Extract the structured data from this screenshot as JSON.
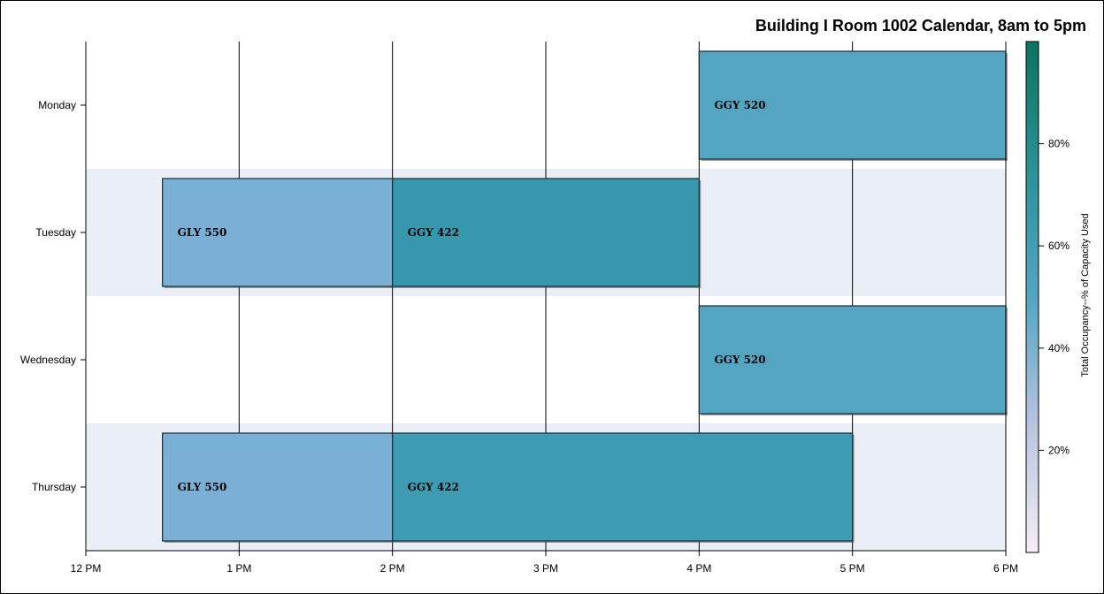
{
  "chart_data": {
    "type": "bar",
    "orientation": "horizontal",
    "title": "Building I Room 1002 Calendar, 8am to 5pm",
    "categories": [
      "Monday",
      "Tuesday",
      "Wednesday",
      "Thursday"
    ],
    "x_ticks": [
      {
        "value": 12,
        "label": "12 PM"
      },
      {
        "value": 13,
        "label": "1 PM"
      },
      {
        "value": 14,
        "label": "2 PM"
      },
      {
        "value": 15,
        "label": "3 PM"
      },
      {
        "value": 16,
        "label": "4 PM"
      },
      {
        "value": 17,
        "label": "5 PM"
      },
      {
        "value": 18,
        "label": "6 PM"
      }
    ],
    "xlim": [
      12,
      18
    ],
    "grid": true,
    "bars": [
      {
        "day": "Monday",
        "label": "GGY 520",
        "start": 16.0,
        "end": 18.0,
        "occupancy": 50,
        "color": "#53a5c3"
      },
      {
        "day": "Tuesday",
        "label": "GLY 550",
        "start": 12.5,
        "end": 14.0,
        "occupancy": 44,
        "color": "#7ab0d5"
      },
      {
        "day": "Tuesday",
        "label": "GGY 422",
        "start": 14.0,
        "end": 16.0,
        "occupancy": 66,
        "color": "#3598ac"
      },
      {
        "day": "Wednesday",
        "label": "GGY 520",
        "start": 16.0,
        "end": 18.0,
        "occupancy": 50,
        "color": "#53a5c3"
      },
      {
        "day": "Thursday",
        "label": "GLY 550",
        "start": 12.5,
        "end": 14.0,
        "occupancy": 44,
        "color": "#7ab0d5"
      },
      {
        "day": "Thursday",
        "label": "GGY 422",
        "start": 14.0,
        "end": 17.0,
        "occupancy": 62,
        "color": "#3e9bb4"
      }
    ],
    "colorbar": {
      "label": "Total Occupancy--% of Capacity Used",
      "range": [
        0,
        100
      ],
      "ticks": [
        {
          "value": 20,
          "label": "20%"
        },
        {
          "value": 40,
          "label": "40%"
        },
        {
          "value": 60,
          "label": "60%"
        },
        {
          "value": 80,
          "label": "80%"
        }
      ],
      "gradient": [
        "#f5eef5",
        "#b8c3e0",
        "#53a5c3",
        "#2a9295",
        "#0b7361"
      ]
    },
    "band_color": "#eaeef7"
  }
}
